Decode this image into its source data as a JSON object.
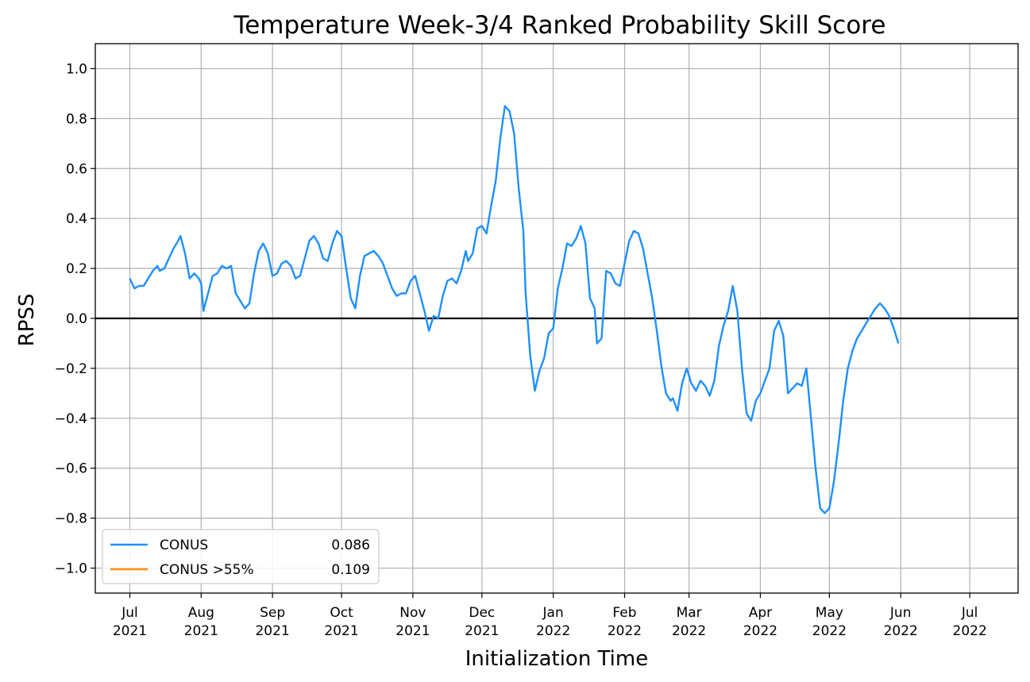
{
  "chart_data": {
    "type": "line",
    "title": "Temperature Week-3/4 Ranked Probability Skill Score",
    "xlabel": "Initialization Time",
    "ylabel": "RPSS",
    "xlim": [
      "2021-06-16",
      "2022-07-22"
    ],
    "ylim": [
      -1.1,
      1.1
    ],
    "grid": true,
    "legend_position": "lower-left",
    "zero_line": 0.0,
    "y_ticks": [
      {
        "value": -1.0,
        "label": "−1.0"
      },
      {
        "value": -0.8,
        "label": "−0.8"
      },
      {
        "value": -0.6,
        "label": "−0.6"
      },
      {
        "value": -0.4,
        "label": "−0.4"
      },
      {
        "value": -0.2,
        "label": "−0.2"
      },
      {
        "value": 0.0,
        "label": "0.0"
      },
      {
        "value": 0.2,
        "label": "0.2"
      },
      {
        "value": 0.4,
        "label": "0.4"
      },
      {
        "value": 0.6,
        "label": "0.6"
      },
      {
        "value": 0.8,
        "label": "0.8"
      },
      {
        "value": 1.0,
        "label": "1.0"
      }
    ],
    "x_ticks": [
      {
        "date": "2021-07-01",
        "line1": "Jul",
        "line2": "2021"
      },
      {
        "date": "2021-08-01",
        "line1": "Aug",
        "line2": "2021"
      },
      {
        "date": "2021-09-01",
        "line1": "Sep",
        "line2": "2021"
      },
      {
        "date": "2021-10-01",
        "line1": "Oct",
        "line2": "2021"
      },
      {
        "date": "2021-11-01",
        "line1": "Nov",
        "line2": "2021"
      },
      {
        "date": "2021-12-01",
        "line1": "Dec",
        "line2": "2021"
      },
      {
        "date": "2022-01-01",
        "line1": "Jan",
        "line2": "2022"
      },
      {
        "date": "2022-02-01",
        "line1": "Feb",
        "line2": "2022"
      },
      {
        "date": "2022-03-01",
        "line1": "Mar",
        "line2": "2022"
      },
      {
        "date": "2022-04-01",
        "line1": "Apr",
        "line2": "2022"
      },
      {
        "date": "2022-05-01",
        "line1": "May",
        "line2": "2022"
      },
      {
        "date": "2022-06-01",
        "line1": "Jun",
        "line2": "2022"
      },
      {
        "date": "2022-07-01",
        "line1": "Jul",
        "line2": "2022"
      }
    ],
    "series": [
      {
        "name": "CONUS",
        "legend_value": "0.086",
        "color": "#1e90ff",
        "points": [
          [
            "2021-07-01",
            0.16
          ],
          [
            "2021-07-03",
            0.12
          ],
          [
            "2021-07-05",
            0.13
          ],
          [
            "2021-07-07",
            0.13
          ],
          [
            "2021-07-09",
            0.16
          ],
          [
            "2021-07-11",
            0.19
          ],
          [
            "2021-07-13",
            0.21
          ],
          [
            "2021-07-14",
            0.19
          ],
          [
            "2021-07-16",
            0.2
          ],
          [
            "2021-07-18",
            0.24
          ],
          [
            "2021-07-20",
            0.28
          ],
          [
            "2021-07-22",
            0.31
          ],
          [
            "2021-07-23",
            0.33
          ],
          [
            "2021-07-25",
            0.26
          ],
          [
            "2021-07-27",
            0.16
          ],
          [
            "2021-07-29",
            0.18
          ],
          [
            "2021-07-31",
            0.16
          ],
          [
            "2021-08-01",
            0.14
          ],
          [
            "2021-08-02",
            0.03
          ],
          [
            "2021-08-04",
            0.1
          ],
          [
            "2021-08-06",
            0.17
          ],
          [
            "2021-08-08",
            0.18
          ],
          [
            "2021-08-10",
            0.21
          ],
          [
            "2021-08-12",
            0.2
          ],
          [
            "2021-08-14",
            0.21
          ],
          [
            "2021-08-16",
            0.1
          ],
          [
            "2021-08-18",
            0.07
          ],
          [
            "2021-08-20",
            0.04
          ],
          [
            "2021-08-22",
            0.06
          ],
          [
            "2021-08-24",
            0.18
          ],
          [
            "2021-08-26",
            0.27
          ],
          [
            "2021-08-28",
            0.3
          ],
          [
            "2021-08-30",
            0.26
          ],
          [
            "2021-09-01",
            0.17
          ],
          [
            "2021-09-03",
            0.18
          ],
          [
            "2021-09-05",
            0.22
          ],
          [
            "2021-09-07",
            0.23
          ],
          [
            "2021-09-09",
            0.21
          ],
          [
            "2021-09-11",
            0.16
          ],
          [
            "2021-09-13",
            0.17
          ],
          [
            "2021-09-15",
            0.24
          ],
          [
            "2021-09-17",
            0.31
          ],
          [
            "2021-09-19",
            0.33
          ],
          [
            "2021-09-21",
            0.3
          ],
          [
            "2021-09-23",
            0.24
          ],
          [
            "2021-09-25",
            0.23
          ],
          [
            "2021-09-27",
            0.3
          ],
          [
            "2021-09-29",
            0.35
          ],
          [
            "2021-10-01",
            0.33
          ],
          [
            "2021-10-03",
            0.2
          ],
          [
            "2021-10-05",
            0.08
          ],
          [
            "2021-10-07",
            0.04
          ],
          [
            "2021-10-09",
            0.17
          ],
          [
            "2021-10-11",
            0.25
          ],
          [
            "2021-10-13",
            0.26
          ],
          [
            "2021-10-15",
            0.27
          ],
          [
            "2021-10-17",
            0.25
          ],
          [
            "2021-10-19",
            0.22
          ],
          [
            "2021-10-21",
            0.17
          ],
          [
            "2021-10-23",
            0.12
          ],
          [
            "2021-10-25",
            0.09
          ],
          [
            "2021-10-27",
            0.1
          ],
          [
            "2021-10-29",
            0.1
          ],
          [
            "2021-10-31",
            0.15
          ],
          [
            "2021-11-02",
            0.17
          ],
          [
            "2021-11-04",
            0.1
          ],
          [
            "2021-11-06",
            0.03
          ],
          [
            "2021-11-08",
            -0.05
          ],
          [
            "2021-11-10",
            0.01
          ],
          [
            "2021-11-12",
            0.0
          ],
          [
            "2021-11-14",
            0.09
          ],
          [
            "2021-11-16",
            0.15
          ],
          [
            "2021-11-18",
            0.16
          ],
          [
            "2021-11-20",
            0.14
          ],
          [
            "2021-11-22",
            0.19
          ],
          [
            "2021-11-24",
            0.27
          ],
          [
            "2021-11-25",
            0.23
          ],
          [
            "2021-11-27",
            0.26
          ],
          [
            "2021-11-29",
            0.36
          ],
          [
            "2021-12-01",
            0.37
          ],
          [
            "2021-12-03",
            0.34
          ],
          [
            "2021-12-05",
            0.45
          ],
          [
            "2021-12-07",
            0.55
          ],
          [
            "2021-12-09",
            0.72
          ],
          [
            "2021-12-11",
            0.85
          ],
          [
            "2021-12-13",
            0.83
          ],
          [
            "2021-12-15",
            0.74
          ],
          [
            "2021-12-17",
            0.52
          ],
          [
            "2021-12-19",
            0.35
          ],
          [
            "2021-12-20",
            0.1
          ],
          [
            "2021-12-22",
            -0.15
          ],
          [
            "2021-12-24",
            -0.29
          ],
          [
            "2021-12-26",
            -0.21
          ],
          [
            "2021-12-28",
            -0.16
          ],
          [
            "2021-12-30",
            -0.06
          ],
          [
            "2022-01-01",
            -0.04
          ],
          [
            "2022-01-03",
            0.12
          ],
          [
            "2022-01-05",
            0.2
          ],
          [
            "2022-01-07",
            0.3
          ],
          [
            "2022-01-09",
            0.29
          ],
          [
            "2022-01-11",
            0.32
          ],
          [
            "2022-01-13",
            0.37
          ],
          [
            "2022-01-15",
            0.3
          ],
          [
            "2022-01-17",
            0.08
          ],
          [
            "2022-01-19",
            0.04
          ],
          [
            "2022-01-20",
            -0.1
          ],
          [
            "2022-01-22",
            -0.08
          ],
          [
            "2022-01-24",
            0.19
          ],
          [
            "2022-01-26",
            0.18
          ],
          [
            "2022-01-28",
            0.14
          ],
          [
            "2022-01-30",
            0.13
          ],
          [
            "2022-02-01",
            0.22
          ],
          [
            "2022-02-03",
            0.31
          ],
          [
            "2022-02-05",
            0.35
          ],
          [
            "2022-02-07",
            0.34
          ],
          [
            "2022-02-09",
            0.28
          ],
          [
            "2022-02-11",
            0.18
          ],
          [
            "2022-02-13",
            0.08
          ],
          [
            "2022-02-15",
            -0.05
          ],
          [
            "2022-02-17",
            -0.19
          ],
          [
            "2022-02-19",
            -0.3
          ],
          [
            "2022-02-21",
            -0.33
          ],
          [
            "2022-02-22",
            -0.32
          ],
          [
            "2022-02-24",
            -0.37
          ],
          [
            "2022-02-26",
            -0.26
          ],
          [
            "2022-02-28",
            -0.2
          ],
          [
            "2022-03-02",
            -0.26
          ],
          [
            "2022-03-04",
            -0.29
          ],
          [
            "2022-03-06",
            -0.25
          ],
          [
            "2022-03-08",
            -0.27
          ],
          [
            "2022-03-10",
            -0.31
          ],
          [
            "2022-03-12",
            -0.25
          ],
          [
            "2022-03-14",
            -0.11
          ],
          [
            "2022-03-16",
            -0.03
          ],
          [
            "2022-03-18",
            0.03
          ],
          [
            "2022-03-20",
            0.13
          ],
          [
            "2022-03-22",
            0.03
          ],
          [
            "2022-03-24",
            -0.2
          ],
          [
            "2022-03-26",
            -0.38
          ],
          [
            "2022-03-28",
            -0.41
          ],
          [
            "2022-03-30",
            -0.33
          ],
          [
            "2022-04-01",
            -0.3
          ],
          [
            "2022-04-03",
            -0.25
          ],
          [
            "2022-04-05",
            -0.2
          ],
          [
            "2022-04-07",
            -0.05
          ],
          [
            "2022-04-09",
            -0.01
          ],
          [
            "2022-04-11",
            -0.07
          ],
          [
            "2022-04-13",
            -0.3
          ],
          [
            "2022-04-15",
            -0.28
          ],
          [
            "2022-04-17",
            -0.26
          ],
          [
            "2022-04-19",
            -0.27
          ],
          [
            "2022-04-21",
            -0.2
          ],
          [
            "2022-04-23",
            -0.4
          ],
          [
            "2022-04-25",
            -0.6
          ],
          [
            "2022-04-27",
            -0.76
          ],
          [
            "2022-04-29",
            -0.78
          ],
          [
            "2022-05-01",
            -0.76
          ],
          [
            "2022-05-03",
            -0.65
          ],
          [
            "2022-05-05",
            -0.5
          ],
          [
            "2022-05-07",
            -0.33
          ],
          [
            "2022-05-09",
            -0.2
          ],
          [
            "2022-05-11",
            -0.13
          ],
          [
            "2022-05-13",
            -0.08
          ],
          [
            "2022-05-15",
            -0.05
          ],
          [
            "2022-05-17",
            -0.02
          ],
          [
            "2022-05-19",
            0.01
          ],
          [
            "2022-05-21",
            0.04
          ],
          [
            "2022-05-23",
            0.06
          ],
          [
            "2022-05-25",
            0.04
          ],
          [
            "2022-05-27",
            0.01
          ],
          [
            "2022-05-29",
            -0.04
          ],
          [
            "2022-05-31",
            -0.1
          ]
        ]
      },
      {
        "name": "CONUS >55%",
        "legend_value": "0.109",
        "color": "#ff8c00",
        "points": []
      }
    ]
  }
}
